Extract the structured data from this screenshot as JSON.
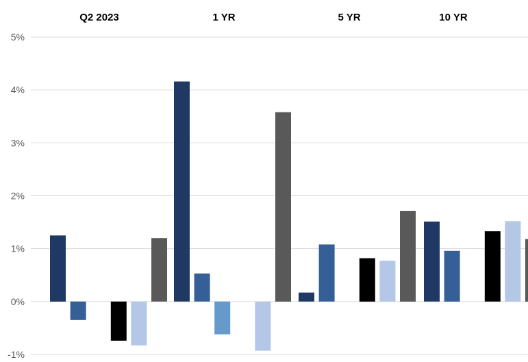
{
  "chart_data": {
    "type": "bar",
    "categories": [
      "Q2 2023",
      "1 YR",
      "5 YR",
      "10 YR"
    ],
    "y_ticks": [
      "-1%",
      "0%",
      "1%",
      "2%",
      "3%",
      "4%",
      "5%"
    ],
    "ylim": [
      -1,
      5
    ],
    "grid": true,
    "legend": "none",
    "series": [
      {
        "color": "#1f3864",
        "values": [
          1.25,
          4.16,
          0.17,
          1.51
        ]
      },
      {
        "color": "#355f97",
        "values": [
          -0.35,
          0.53,
          1.08,
          0.96
        ]
      },
      {
        "color": "#6699cc",
        "values": [
          null,
          -0.62,
          null,
          null
        ]
      },
      {
        "color": "#000000",
        "values": [
          -0.74,
          null,
          0.82,
          1.33
        ]
      },
      {
        "color": "#b4c7e7",
        "values": [
          -0.83,
          -0.93,
          0.77,
          1.52
        ]
      },
      {
        "color": "#595959",
        "values": [
          1.2,
          3.58,
          1.71,
          1.18
        ]
      }
    ]
  }
}
